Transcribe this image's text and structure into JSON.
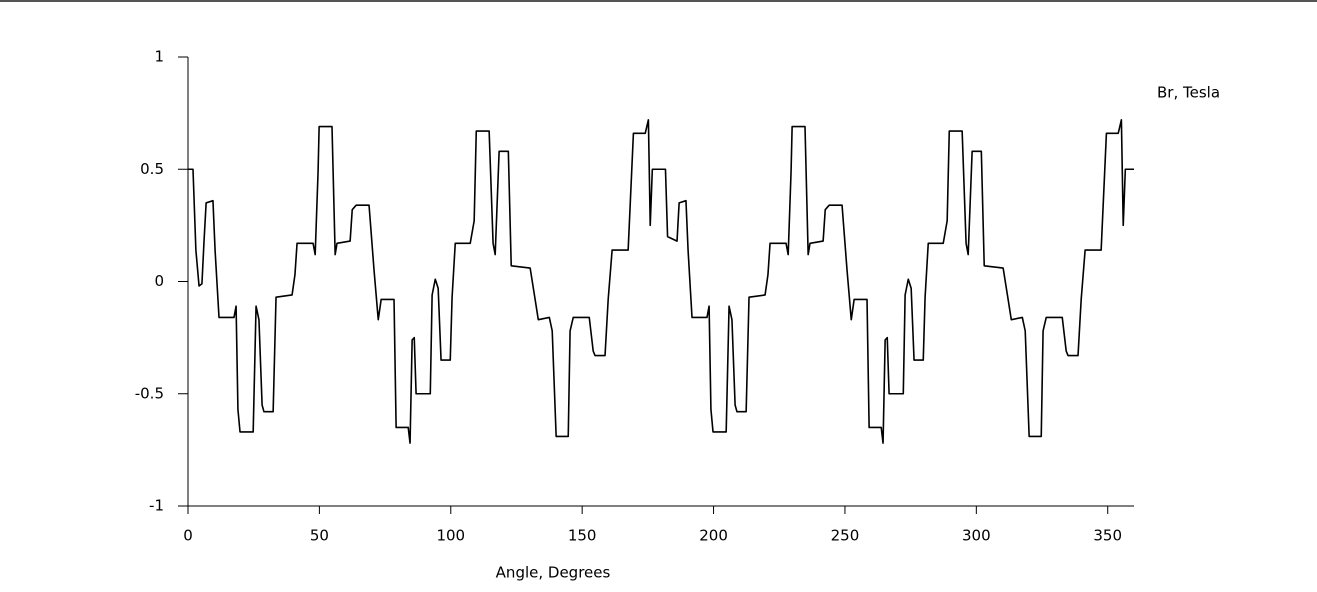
{
  "chart_data": {
    "type": "line",
    "y_label": "Br, Tesla",
    "x_label": "Angle, Degrees",
    "color": "#000000",
    "xlim": [
      0,
      360
    ],
    "ylim": [
      -1,
      1
    ],
    "xticks": [
      0,
      50,
      100,
      150,
      200,
      250,
      300,
      350
    ],
    "yticks": [
      -1,
      -0.5,
      0,
      0.5,
      1
    ],
    "x": [
      0,
      1.9,
      3.0,
      4.2,
      5.3,
      6.1,
      6.9,
      9.5,
      10.3,
      11.8,
      17.5,
      18.3,
      19.0,
      19.8,
      24.8,
      25.9,
      27.0,
      28.2,
      28.9,
      32.4,
      33.5,
      39.6,
      40.7,
      41.5,
      47.6,
      48.4,
      49.5,
      49.9,
      54.8,
      56.0,
      56.7,
      61.7,
      62.5,
      64.0,
      68.9,
      70.8,
      72.4,
      73.5,
      78.4,
      79.2,
      83.8,
      84.5,
      85.3,
      86.1,
      86.8,
      92.2,
      92.9,
      94.1,
      95.2,
      96.3,
      99.8,
      100.5,
      101.7,
      107.4,
      108.9,
      109.7,
      114.6,
      116.1,
      116.9,
      118.4,
      120,
      121.9,
      123.0,
      130.2,
      132.1,
      133.3,
      137.5,
      138.6,
      140.1,
      144.7,
      145.4,
      146.6,
      152.7,
      154.2,
      154.9,
      158.7,
      159.9,
      161.4,
      167.5,
      169.5,
      174.0,
      175.2,
      175.9,
      176.7,
      181.7,
      182.5,
      186.1,
      186.9,
      189.5,
      190.3,
      191.8,
      197.5,
      198.3,
      199.0,
      199.8,
      204.8,
      205.9,
      207.0,
      208.2,
      208.9,
      212.4,
      213.5,
      219.6,
      220.7,
      221.5,
      227.6,
      228.4,
      229.5,
      229.9,
      234.8,
      236.0,
      236.7,
      241.7,
      242.5,
      244.0,
      248.9,
      250.8,
      252.4,
      253.5,
      258.4,
      259.2,
      263.8,
      264.5,
      265.3,
      266.1,
      266.8,
      272.2,
      272.9,
      274.1,
      275.2,
      276.3,
      279.8,
      280.5,
      281.7,
      287.4,
      288.9,
      289.7,
      294.6,
      296.1,
      296.9,
      298.4,
      300,
      301.9,
      303.0,
      310.2,
      312.1,
      313.3,
      317.5,
      318.6,
      320.1,
      324.7,
      325.4,
      326.6,
      332.7,
      334.2,
      334.9,
      338.7,
      339.9,
      341.4,
      347.5,
      349.5,
      354.0,
      355.2,
      355.9,
      356.7,
      360
    ],
    "values": [
      0.5,
      0.5,
      0.14,
      -0.02,
      -0.01,
      0.18,
      0.35,
      0.36,
      0.14,
      -0.16,
      -0.16,
      -0.11,
      -0.57,
      -0.67,
      -0.67,
      -0.11,
      -0.17,
      -0.55,
      -0.58,
      -0.58,
      -0.07,
      -0.06,
      0.03,
      0.17,
      0.17,
      0.12,
      0.49,
      0.69,
      0.69,
      0.12,
      0.17,
      0.18,
      0.32,
      0.34,
      0.34,
      0.05,
      -0.17,
      -0.08,
      -0.08,
      -0.65,
      -0.65,
      -0.72,
      -0.26,
      -0.25,
      -0.5,
      -0.5,
      -0.06,
      0.01,
      -0.03,
      -0.35,
      -0.35,
      -0.07,
      0.17,
      0.17,
      0.27,
      0.67,
      0.67,
      0.17,
      0.12,
      0.58,
      0.58,
      0.58,
      0.07,
      0.06,
      -0.08,
      -0.17,
      -0.16,
      -0.22,
      -0.69,
      -0.69,
      -0.22,
      -0.16,
      -0.16,
      -0.31,
      -0.33,
      -0.33,
      -0.08,
      0.14,
      0.14,
      0.66,
      0.66,
      0.72,
      0.25,
      0.5,
      0.5,
      0.2,
      0.18,
      0.35,
      0.36,
      0.14,
      -0.16,
      -0.16,
      -0.11,
      -0.57,
      -0.67,
      -0.67,
      -0.11,
      -0.17,
      -0.55,
      -0.58,
      -0.58,
      -0.07,
      -0.06,
      0.03,
      0.17,
      0.17,
      0.12,
      0.49,
      0.69,
      0.69,
      0.12,
      0.17,
      0.18,
      0.32,
      0.34,
      0.34,
      0.05,
      -0.17,
      -0.08,
      -0.08,
      -0.65,
      -0.65,
      -0.72,
      -0.26,
      -0.25,
      -0.5,
      -0.5,
      -0.06,
      0.01,
      -0.03,
      -0.35,
      -0.35,
      -0.07,
      0.17,
      0.17,
      0.27,
      0.67,
      0.67,
      0.17,
      0.12,
      0.58,
      0.58,
      0.58,
      0.07,
      0.06,
      -0.08,
      -0.17,
      -0.16,
      -0.22,
      -0.69,
      -0.69,
      -0.22,
      -0.16,
      -0.16,
      -0.31,
      -0.33,
      -0.33,
      -0.08,
      0.14,
      0.14,
      0.66,
      0.66,
      0.72,
      0.25,
      0.5,
      0.5
    ]
  }
}
